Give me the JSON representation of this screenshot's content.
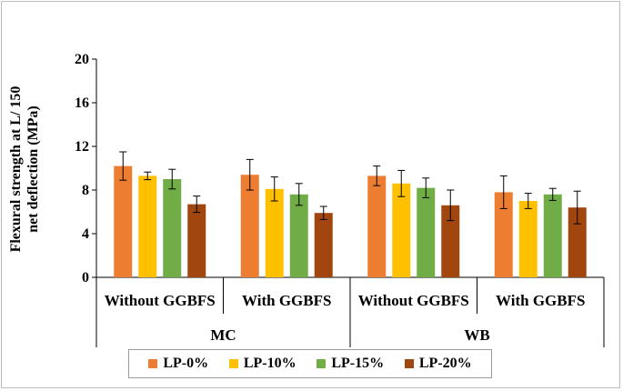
{
  "chart_data": {
    "type": "bar",
    "title": "",
    "ylabel_line1": "Flexural strength at L/ 150",
    "ylabel_line2": "net deflection (MPa)",
    "xlabel": "",
    "ylim": [
      0,
      20
    ],
    "yticks": [
      "0",
      "4",
      "8",
      "12",
      "16",
      "20"
    ],
    "groups": [
      {
        "name": "MC",
        "categories": [
          "Without GGBFS",
          "With GGBFS"
        ]
      },
      {
        "name": "WB",
        "categories": [
          "Without GGBFS",
          "With GGBFS"
        ]
      }
    ],
    "series": [
      {
        "name": "LP-0%",
        "color": "#ed7d31",
        "values": [
          10.2,
          9.4,
          9.3,
          7.8
        ],
        "errors": [
          1.3,
          1.4,
          0.9,
          1.5
        ]
      },
      {
        "name": "LP-10%",
        "color": "#ffc000",
        "values": [
          9.3,
          8.1,
          8.6,
          7.0
        ],
        "errors": [
          0.35,
          1.1,
          1.2,
          0.7
        ]
      },
      {
        "name": "LP-15%",
        "color": "#70ad47",
        "values": [
          9.0,
          7.6,
          8.2,
          7.6
        ],
        "errors": [
          0.9,
          1.0,
          0.9,
          0.55
        ]
      },
      {
        "name": "LP-20%",
        "color": "#a0460e",
        "values": [
          6.7,
          5.9,
          6.6,
          6.4
        ],
        "errors": [
          0.75,
          0.6,
          1.4,
          1.5
        ]
      }
    ],
    "legend_position": "bottom"
  }
}
